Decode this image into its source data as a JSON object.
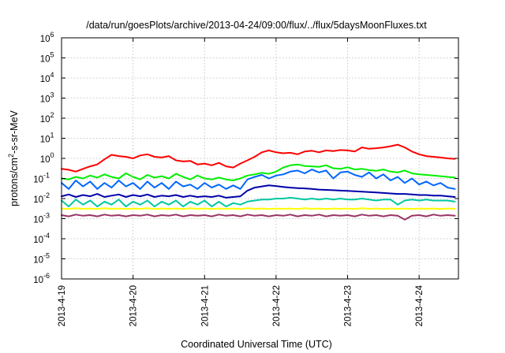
{
  "chart_data": {
    "type": "line",
    "title": "/data/run/goesPlots/archive/2013-04-24/09:00/flux/../flux/5daysMoonFluxes.txt",
    "xlabel": "Coordinated Universal Time (UTC)",
    "ylabel": "protons/cm²-s-sr-MeV",
    "ylabel_parts": {
      "before": "protons/cm",
      "sup": "2",
      "after": "-s-sr-MeV"
    },
    "y_scale": "log",
    "ylim": [
      1e-06,
      1000000
    ],
    "xlim": [
      0,
      5.55
    ],
    "grid": true,
    "legend": "none",
    "x_ticks": [
      {
        "value": 0,
        "label": "2013-4-19"
      },
      {
        "value": 1,
        "label": "2013-4-20"
      },
      {
        "value": 2,
        "label": "2013-4-21"
      },
      {
        "value": 3,
        "label": "2013-4-22"
      },
      {
        "value": 4,
        "label": "2013-4-23"
      },
      {
        "value": 5,
        "label": "2013-4-24"
      }
    ],
    "y_ticks": [
      {
        "value": 1e-06,
        "base": "10",
        "exp": "-6"
      },
      {
        "value": 1e-05,
        "base": "10",
        "exp": "-5"
      },
      {
        "value": 0.0001,
        "base": "10",
        "exp": "-4"
      },
      {
        "value": 0.001,
        "base": "10",
        "exp": "-3"
      },
      {
        "value": 0.01,
        "base": "10",
        "exp": "-2"
      },
      {
        "value": 0.1,
        "base": "10",
        "exp": "-1"
      },
      {
        "value": 1,
        "base": "10",
        "exp": "0"
      },
      {
        "value": 10,
        "base": "10",
        "exp": "1"
      },
      {
        "value": 100,
        "base": "10",
        "exp": "2"
      },
      {
        "value": 1000,
        "base": "10",
        "exp": "3"
      },
      {
        "value": 10000,
        "base": "10",
        "exp": "4"
      },
      {
        "value": 100000,
        "base": "10",
        "exp": "5"
      },
      {
        "value": 1000000,
        "base": "10",
        "exp": "6"
      }
    ],
    "series": [
      {
        "color": "#ff0000",
        "x": [
          0,
          0.1,
          0.2,
          0.3,
          0.4,
          0.5,
          0.6,
          0.7,
          0.8,
          0.9,
          1.0,
          1.1,
          1.2,
          1.3,
          1.4,
          1.5,
          1.6,
          1.7,
          1.8,
          1.9,
          2.0,
          2.1,
          2.2,
          2.3,
          2.4,
          2.5,
          2.6,
          2.7,
          2.8,
          2.9,
          3.0,
          3.1,
          3.2,
          3.3,
          3.4,
          3.5,
          3.6,
          3.7,
          3.8,
          3.9,
          4.0,
          4.1,
          4.2,
          4.3,
          4.4,
          4.5,
          4.6,
          4.7,
          4.8,
          4.9,
          5.0,
          5.1,
          5.2,
          5.3,
          5.4,
          5.5
        ],
        "y": [
          0.3,
          0.27,
          0.22,
          0.3,
          0.4,
          0.5,
          0.9,
          1.5,
          1.3,
          1.2,
          1.0,
          1.4,
          1.6,
          1.2,
          1.1,
          1.3,
          0.8,
          0.7,
          0.75,
          0.5,
          0.55,
          0.45,
          0.6,
          0.4,
          0.35,
          0.55,
          0.8,
          1.2,
          2.0,
          2.5,
          2.0,
          1.8,
          1.9,
          1.6,
          2.2,
          2.4,
          2.0,
          2.5,
          2.3,
          2.6,
          2.5,
          2.2,
          3.5,
          3.0,
          3.2,
          3.5,
          4.0,
          4.8,
          3.5,
          2.2,
          1.6,
          1.3,
          1.2,
          1.1,
          1.0,
          0.95
        ]
      },
      {
        "color": "#00ee00",
        "x": [
          0,
          0.1,
          0.2,
          0.3,
          0.4,
          0.5,
          0.6,
          0.7,
          0.8,
          0.9,
          1.0,
          1.1,
          1.2,
          1.3,
          1.4,
          1.5,
          1.6,
          1.7,
          1.8,
          1.9,
          2.0,
          2.1,
          2.2,
          2.3,
          2.4,
          2.5,
          2.6,
          2.7,
          2.8,
          2.9,
          3.0,
          3.1,
          3.2,
          3.3,
          3.4,
          3.5,
          3.6,
          3.7,
          3.8,
          3.9,
          4.0,
          4.1,
          4.2,
          4.3,
          4.4,
          4.5,
          4.6,
          4.7,
          4.8,
          4.9,
          5.0,
          5.1,
          5.2,
          5.3,
          5.4,
          5.5
        ],
        "y": [
          0.1,
          0.09,
          0.12,
          0.1,
          0.14,
          0.11,
          0.16,
          0.12,
          0.1,
          0.18,
          0.12,
          0.09,
          0.15,
          0.11,
          0.13,
          0.1,
          0.17,
          0.12,
          0.09,
          0.14,
          0.1,
          0.09,
          0.11,
          0.09,
          0.08,
          0.1,
          0.14,
          0.16,
          0.19,
          0.17,
          0.22,
          0.35,
          0.45,
          0.5,
          0.42,
          0.4,
          0.38,
          0.45,
          0.32,
          0.3,
          0.36,
          0.28,
          0.3,
          0.26,
          0.24,
          0.28,
          0.22,
          0.2,
          0.25,
          0.18,
          0.16,
          0.15,
          0.14,
          0.13,
          0.12,
          0.11
        ]
      },
      {
        "color": "#0066ff",
        "x": [
          0,
          0.1,
          0.2,
          0.3,
          0.4,
          0.5,
          0.6,
          0.7,
          0.8,
          0.9,
          1.0,
          1.1,
          1.2,
          1.3,
          1.4,
          1.5,
          1.6,
          1.7,
          1.8,
          1.9,
          2.0,
          2.1,
          2.2,
          2.3,
          2.4,
          2.5,
          2.6,
          2.7,
          2.8,
          2.9,
          3.0,
          3.1,
          3.2,
          3.3,
          3.4,
          3.5,
          3.6,
          3.7,
          3.8,
          3.9,
          4.0,
          4.1,
          4.2,
          4.3,
          4.4,
          4.5,
          4.6,
          4.7,
          4.8,
          4.9,
          5.0,
          5.1,
          5.2,
          5.3,
          5.4,
          5.5
        ],
        "y": [
          0.06,
          0.03,
          0.08,
          0.04,
          0.07,
          0.03,
          0.06,
          0.035,
          0.08,
          0.04,
          0.06,
          0.03,
          0.07,
          0.035,
          0.06,
          0.03,
          0.07,
          0.04,
          0.05,
          0.03,
          0.06,
          0.035,
          0.05,
          0.03,
          0.045,
          0.03,
          0.09,
          0.12,
          0.15,
          0.1,
          0.14,
          0.16,
          0.22,
          0.25,
          0.18,
          0.28,
          0.2,
          0.25,
          0.1,
          0.2,
          0.22,
          0.15,
          0.12,
          0.2,
          0.1,
          0.16,
          0.08,
          0.12,
          0.06,
          0.1,
          0.05,
          0.07,
          0.045,
          0.06,
          0.035,
          0.03
        ]
      },
      {
        "color": "#0000aa",
        "x": [
          0,
          0.1,
          0.2,
          0.3,
          0.4,
          0.5,
          0.6,
          0.7,
          0.8,
          0.9,
          1.0,
          1.1,
          1.2,
          1.3,
          1.4,
          1.5,
          1.6,
          1.7,
          1.8,
          1.9,
          2.0,
          2.1,
          2.2,
          2.3,
          2.4,
          2.5,
          2.6,
          2.7,
          2.8,
          2.9,
          3.0,
          3.1,
          3.2,
          3.3,
          3.4,
          3.5,
          3.6,
          3.7,
          3.8,
          3.9,
          4.0,
          4.1,
          4.2,
          4.3,
          4.4,
          4.5,
          4.6,
          4.7,
          4.8,
          4.9,
          5.0,
          5.1,
          5.2,
          5.3,
          5.4,
          5.5
        ],
        "y": [
          0.013,
          0.016,
          0.012,
          0.015,
          0.013,
          0.017,
          0.012,
          0.014,
          0.016,
          0.012,
          0.015,
          0.013,
          0.016,
          0.012,
          0.014,
          0.013,
          0.015,
          0.012,
          0.014,
          0.012,
          0.013,
          0.012,
          0.014,
          0.011,
          0.012,
          0.013,
          0.025,
          0.035,
          0.04,
          0.045,
          0.042,
          0.038,
          0.035,
          0.033,
          0.032,
          0.03,
          0.028,
          0.027,
          0.026,
          0.025,
          0.024,
          0.023,
          0.022,
          0.021,
          0.02,
          0.019,
          0.018,
          0.017,
          0.017,
          0.016,
          0.015,
          0.015,
          0.014,
          0.014,
          0.013,
          0.012
        ]
      },
      {
        "color": "#00c8a0",
        "x": [
          0,
          0.1,
          0.2,
          0.3,
          0.4,
          0.5,
          0.6,
          0.7,
          0.8,
          0.9,
          1.0,
          1.1,
          1.2,
          1.3,
          1.4,
          1.5,
          1.6,
          1.7,
          1.8,
          1.9,
          2.0,
          2.1,
          2.2,
          2.3,
          2.4,
          2.5,
          2.6,
          2.7,
          2.8,
          2.9,
          3.0,
          3.1,
          3.2,
          3.3,
          3.4,
          3.5,
          3.6,
          3.7,
          3.8,
          3.9,
          4.0,
          4.1,
          4.2,
          4.3,
          4.4,
          4.5,
          4.6,
          4.7,
          4.8,
          4.9,
          5.0,
          5.1,
          5.2,
          5.3,
          5.4,
          5.5
        ],
        "y": [
          0.008,
          0.004,
          0.009,
          0.005,
          0.008,
          0.004,
          0.007,
          0.005,
          0.009,
          0.004,
          0.007,
          0.005,
          0.008,
          0.004,
          0.007,
          0.005,
          0.008,
          0.004,
          0.007,
          0.005,
          0.008,
          0.004,
          0.007,
          0.004,
          0.006,
          0.005,
          0.007,
          0.008,
          0.009,
          0.009,
          0.01,
          0.01,
          0.011,
          0.01,
          0.009,
          0.01,
          0.009,
          0.01,
          0.009,
          0.01,
          0.009,
          0.009,
          0.01,
          0.009,
          0.008,
          0.009,
          0.009,
          0.005,
          0.008,
          0.009,
          0.008,
          0.009,
          0.008,
          0.008,
          0.008,
          0.007
        ]
      },
      {
        "color": "#ffff00",
        "x": [
          0,
          0.1,
          0.2,
          0.3,
          0.4,
          0.5,
          0.6,
          0.7,
          0.8,
          0.9,
          1.0,
          1.1,
          1.2,
          1.3,
          1.4,
          1.5,
          1.6,
          1.7,
          1.8,
          1.9,
          2.0,
          2.1,
          2.2,
          2.3,
          2.4,
          2.5,
          2.6,
          2.7,
          2.8,
          2.9,
          3.0,
          3.1,
          3.2,
          3.3,
          3.4,
          3.5,
          3.6,
          3.7,
          3.8,
          3.9,
          4.0,
          4.1,
          4.2,
          4.3,
          4.4,
          4.5,
          4.6,
          4.7,
          4.8,
          4.9,
          5.0,
          5.1,
          5.2,
          5.3,
          5.4,
          5.5
        ],
        "y": [
          0.0032,
          0.003,
          0.0033,
          0.0031,
          0.0032,
          0.003,
          0.0033,
          0.0031,
          0.0032,
          0.003,
          0.0032,
          0.0031,
          0.0033,
          0.003,
          0.0032,
          0.0031,
          0.0032,
          0.003,
          0.0033,
          0.0031,
          0.0032,
          0.003,
          0.0032,
          0.0031,
          0.0032,
          0.003,
          0.0033,
          0.0031,
          0.0032,
          0.003,
          0.0032,
          0.0031,
          0.0032,
          0.003,
          0.0033,
          0.0031,
          0.0032,
          0.003,
          0.0032,
          0.0031,
          0.0032,
          0.003,
          0.0033,
          0.0031,
          0.0032,
          0.003,
          0.0032,
          0.0031,
          0.0032,
          0.003,
          0.0032,
          0.0031,
          0.0032,
          0.003,
          0.0032,
          0.0031
        ]
      },
      {
        "color": "#993366",
        "x": [
          0,
          0.1,
          0.2,
          0.3,
          0.4,
          0.5,
          0.6,
          0.7,
          0.8,
          0.9,
          1.0,
          1.1,
          1.2,
          1.3,
          1.4,
          1.5,
          1.6,
          1.7,
          1.8,
          1.9,
          2.0,
          2.1,
          2.2,
          2.3,
          2.4,
          2.5,
          2.6,
          2.7,
          2.8,
          2.9,
          3.0,
          3.1,
          3.2,
          3.3,
          3.4,
          3.5,
          3.6,
          3.7,
          3.8,
          3.9,
          4.0,
          4.1,
          4.2,
          4.3,
          4.4,
          4.5,
          4.6,
          4.7,
          4.8,
          4.9,
          5.0,
          5.1,
          5.2,
          5.3,
          5.4,
          5.5
        ],
        "y": [
          0.0015,
          0.0013,
          0.0016,
          0.0014,
          0.0015,
          0.0013,
          0.0016,
          0.0014,
          0.0015,
          0.0013,
          0.0015,
          0.0014,
          0.0016,
          0.0013,
          0.0015,
          0.0014,
          0.0016,
          0.0013,
          0.0015,
          0.0014,
          0.0015,
          0.0013,
          0.0016,
          0.0014,
          0.0015,
          0.0013,
          0.0016,
          0.0014,
          0.0015,
          0.0013,
          0.0015,
          0.0014,
          0.0016,
          0.0013,
          0.0015,
          0.0014,
          0.0016,
          0.0013,
          0.0015,
          0.0014,
          0.0015,
          0.0013,
          0.0016,
          0.0014,
          0.0015,
          0.0013,
          0.0015,
          0.0014,
          0.0009,
          0.0014,
          0.0015,
          0.0013,
          0.0016,
          0.0014,
          0.0015,
          0.0014
        ]
      }
    ]
  }
}
